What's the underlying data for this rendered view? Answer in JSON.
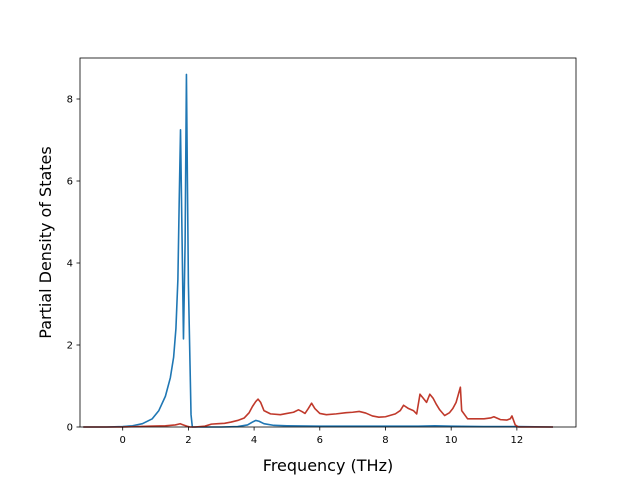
{
  "chart_data": {
    "type": "line",
    "title": "",
    "xlabel": "Frequency (THz)",
    "ylabel": "Partial Density of States",
    "xlim": [
      -1.3,
      13.8
    ],
    "ylim": [
      0,
      9.0
    ],
    "xticks": [
      0,
      2,
      4,
      6,
      8,
      10,
      12
    ],
    "yticks": [
      0,
      2,
      4,
      6,
      8
    ],
    "xtick_labels": [
      "0",
      "2",
      "4",
      "6",
      "8",
      "10",
      "12"
    ],
    "ytick_labels": [
      "0",
      "2",
      "4",
      "6",
      "8"
    ],
    "grid": false,
    "legend": false,
    "series": [
      {
        "color": "#1f77b4",
        "x": [
          -1.2,
          -0.5,
          0.0,
          0.3,
          0.6,
          0.9,
          1.1,
          1.3,
          1.45,
          1.55,
          1.62,
          1.68,
          1.72,
          1.76,
          1.8,
          1.85,
          1.9,
          1.94,
          1.97,
          2.0,
          2.05,
          2.08,
          2.12,
          2.5,
          3.0,
          3.5,
          3.8,
          3.95,
          4.05,
          4.15,
          4.3,
          4.6,
          5.0,
          6.0,
          7.0,
          8.0,
          9.0,
          9.5,
          10.0,
          11.0,
          12.0,
          13.1
        ],
        "y": [
          0.0,
          0.0,
          0.01,
          0.03,
          0.08,
          0.2,
          0.4,
          0.75,
          1.2,
          1.7,
          2.4,
          3.6,
          5.5,
          7.25,
          5.0,
          2.15,
          4.5,
          8.6,
          6.0,
          3.5,
          1.5,
          0.3,
          0.0,
          0.0,
          0.0,
          0.01,
          0.05,
          0.12,
          0.16,
          0.14,
          0.08,
          0.04,
          0.03,
          0.02,
          0.02,
          0.02,
          0.02,
          0.03,
          0.02,
          0.01,
          0.01,
          0.0
        ]
      },
      {
        "color": "#c0392b",
        "x": [
          -1.2,
          0.0,
          0.8,
          1.3,
          1.6,
          1.75,
          1.85,
          1.95,
          2.05,
          2.2,
          2.5,
          2.7,
          2.9,
          3.1,
          3.3,
          3.5,
          3.7,
          3.85,
          3.95,
          4.05,
          4.12,
          4.2,
          4.3,
          4.5,
          4.8,
          5.0,
          5.2,
          5.35,
          5.45,
          5.55,
          5.65,
          5.75,
          5.85,
          6.0,
          6.2,
          6.5,
          6.8,
          7.0,
          7.2,
          7.4,
          7.6,
          7.8,
          8.0,
          8.3,
          8.45,
          8.55,
          8.7,
          8.85,
          8.95,
          9.05,
          9.15,
          9.25,
          9.35,
          9.45,
          9.55,
          9.65,
          9.8,
          9.95,
          10.05,
          10.15,
          10.22,
          10.28,
          10.32,
          10.5,
          11.0,
          11.2,
          11.3,
          11.5,
          11.7,
          11.8,
          11.85,
          11.95,
          12.05,
          12.5,
          13.1
        ],
        "y": [
          0.0,
          0.0,
          0.02,
          0.03,
          0.05,
          0.08,
          0.05,
          0.02,
          0.0,
          0.0,
          0.02,
          0.07,
          0.08,
          0.09,
          0.12,
          0.16,
          0.22,
          0.35,
          0.5,
          0.62,
          0.68,
          0.6,
          0.4,
          0.32,
          0.3,
          0.33,
          0.36,
          0.42,
          0.38,
          0.33,
          0.45,
          0.58,
          0.45,
          0.33,
          0.3,
          0.32,
          0.35,
          0.36,
          0.38,
          0.34,
          0.27,
          0.24,
          0.25,
          0.32,
          0.4,
          0.53,
          0.45,
          0.4,
          0.32,
          0.8,
          0.7,
          0.6,
          0.8,
          0.7,
          0.55,
          0.42,
          0.28,
          0.35,
          0.45,
          0.6,
          0.8,
          0.97,
          0.4,
          0.2,
          0.2,
          0.22,
          0.25,
          0.18,
          0.17,
          0.2,
          0.27,
          0.05,
          0.0,
          0.0,
          0.0
        ]
      }
    ]
  }
}
